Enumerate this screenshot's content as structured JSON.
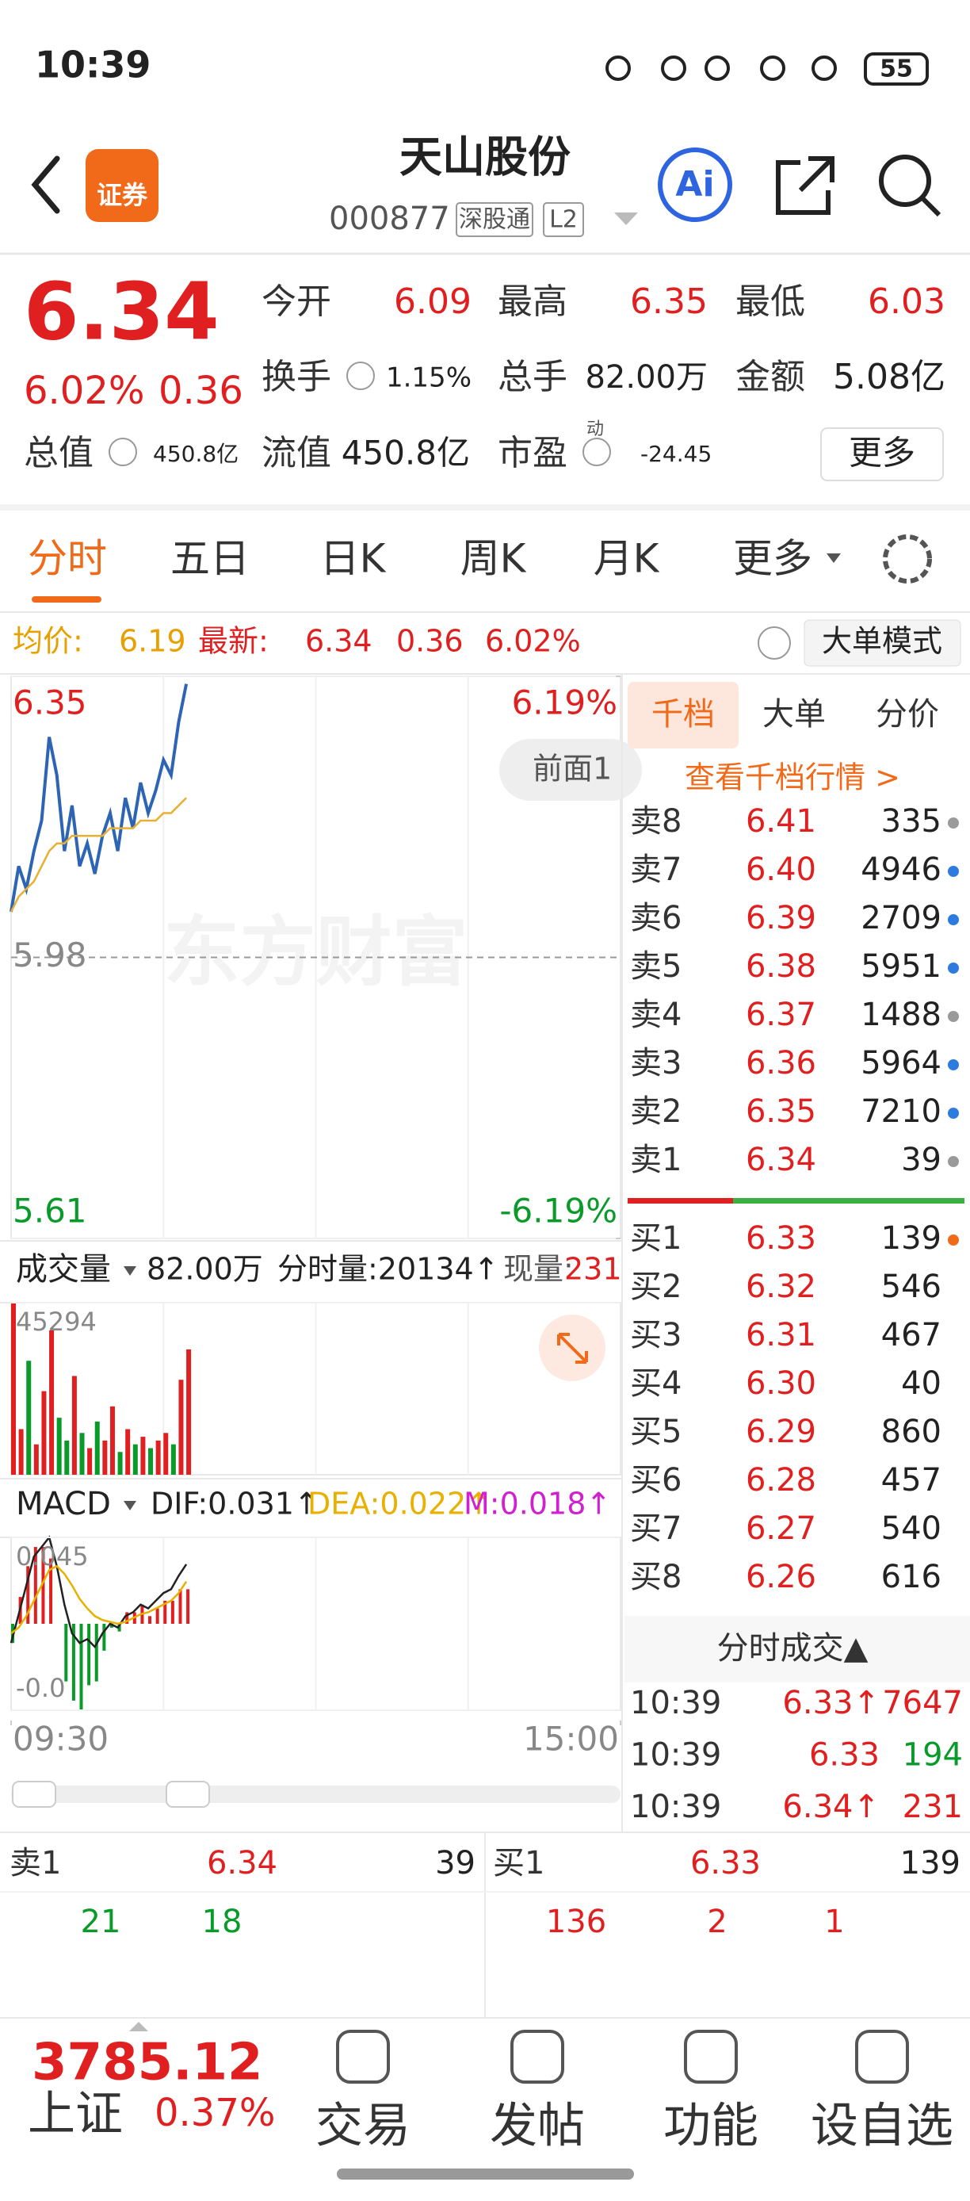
{
  "status_bar": {
    "time": "10:39",
    "battery": "55"
  },
  "header": {
    "badge": "证券",
    "title": "天山股份",
    "code": "000877",
    "tags": [
      "深股通",
      "L2"
    ],
    "ai": "Ai"
  },
  "quote": {
    "price": "6.34",
    "change_pct": "6.02%",
    "change": "0.36",
    "stats": [
      {
        "label": "今开",
        "value": "6.09"
      },
      {
        "label": "最高",
        "value": "6.35"
      },
      {
        "label": "最低",
        "value": "6.03"
      },
      {
        "label": "换手",
        "value": "1.15%"
      },
      {
        "label": "总手",
        "value": "82.00万"
      },
      {
        "label": "金额",
        "value": "5.08亿"
      },
      {
        "label": "总值",
        "value": "450.8亿"
      },
      {
        "label": "流值",
        "value": "450.8亿"
      },
      {
        "label": "市盈",
        "value": "-24.45",
        "superscript": "动"
      }
    ],
    "more": "更多"
  },
  "tabs": [
    "分时",
    "五日",
    "日K",
    "周K",
    "月K",
    "更多"
  ],
  "summary": {
    "avg_label": "均价:",
    "avg": "6.19",
    "last_label": "最新:",
    "last": "6.34",
    "change": "0.36",
    "change_pct": "6.02%",
    "mode": "大单模式"
  },
  "chart_data": [
    {
      "type": "line",
      "watermark": "东方财富",
      "annotation": "前面1",
      "xlim": [
        0,
        240
      ],
      "xticks": [
        {
          "value": 0,
          "label": "09:30"
        },
        {
          "value": 240,
          "label": "15:00"
        }
      ],
      "ylim": [
        5.61,
        6.35
      ],
      "yticks": [
        5.61,
        5.98,
        6.35
      ],
      "y2lim": [
        -6.19,
        6.19
      ],
      "y2ticks": [
        {
          "value": -6.19,
          "label": "-6.19%"
        },
        {
          "value": 6.19,
          "label": "6.19%"
        }
      ],
      "x": [
        0,
        3,
        6,
        9,
        12,
        15,
        18,
        21,
        24,
        27,
        30,
        33,
        36,
        39,
        42,
        45,
        48,
        51,
        54,
        57,
        60,
        63,
        66,
        69
      ],
      "series": [
        {
          "color": "#2e64b4",
          "values": [
            6.04,
            6.1,
            6.07,
            6.12,
            6.16,
            6.27,
            6.22,
            6.12,
            6.18,
            6.1,
            6.13,
            6.09,
            6.14,
            6.17,
            6.12,
            6.19,
            6.15,
            6.21,
            6.17,
            6.2,
            6.24,
            6.22,
            6.29,
            6.34
          ]
        },
        {
          "color": "#e8b030",
          "values": [
            6.04,
            6.06,
            6.07,
            6.08,
            6.1,
            6.12,
            6.13,
            6.13,
            6.14,
            6.14,
            6.14,
            6.14,
            6.14,
            6.15,
            6.15,
            6.15,
            6.15,
            6.16,
            6.16,
            6.16,
            6.17,
            6.17,
            6.18,
            6.19
          ]
        }
      ]
    },
    {
      "type": "bar",
      "title": "成交量",
      "stats": [
        "82.00万",
        "分时量:20134↑",
        "现量:",
        "231"
      ],
      "xlim": [
        0,
        240
      ],
      "ylim": [
        0,
        45294
      ],
      "yticks": [
        45294
      ],
      "x": [
        0,
        3,
        6,
        9,
        12,
        15,
        18,
        21,
        24,
        27,
        30,
        33,
        36,
        39,
        42,
        45,
        48,
        51,
        54,
        57,
        60,
        63,
        66,
        69
      ],
      "values": [
        45294,
        12000,
        30000,
        8000,
        22000,
        38000,
        15000,
        9000,
        26000,
        11000,
        7000,
        14000,
        9000,
        18000,
        6000,
        12000,
        8000,
        10000,
        7000,
        9000,
        11000,
        8000,
        25000,
        33000
      ],
      "colors": [
        "#e02020",
        "#e02020",
        "#0a9a2a",
        "#e02020",
        "#e02020",
        "#e02020",
        "#0a9a2a",
        "#0a9a2a",
        "#e02020",
        "#0a9a2a",
        "#e02020",
        "#0a9a2a",
        "#e02020",
        "#e02020",
        "#0a9a2a",
        "#e02020",
        "#0a9a2a",
        "#e02020",
        "#0a9a2a",
        "#e02020",
        "#e02020",
        "#0a9a2a",
        "#e02020",
        "#e02020"
      ]
    },
    {
      "type": "macd",
      "title": "MACD",
      "stats": [
        "DIF:0.031↑",
        "DEA:0.022↑",
        "M:0.018↑"
      ],
      "stat_colors": [
        "#222222",
        "#e8b000",
        "#d020d0"
      ],
      "xlim": [
        0,
        240
      ],
      "ylim": [
        -0.045,
        0.045
      ],
      "yticks": [
        {
          "value": -0.045,
          "label": "-0.0"
        },
        0.045
      ],
      "x": [
        0,
        3,
        6,
        9,
        12,
        15,
        18,
        21,
        24,
        27,
        30,
        33,
        36,
        39,
        42,
        45,
        48,
        51,
        54,
        57,
        60,
        63,
        66,
        69
      ],
      "histogram": [
        -0.01,
        0.014,
        0.03,
        0.04,
        0.04,
        0.034,
        0.0,
        -0.03,
        -0.04,
        -0.045,
        -0.032,
        -0.03,
        -0.014,
        -0.002,
        -0.004,
        0.006,
        0.006,
        0.01,
        0.004,
        0.008,
        0.012,
        0.012,
        0.018,
        0.018
      ],
      "series": [
        {
          "name": "DIF",
          "color": "#222222",
          "values": [
            -0.01,
            0.005,
            0.02,
            0.035,
            0.04,
            0.045,
            0.03,
            0.01,
            -0.005,
            -0.01,
            -0.008,
            -0.012,
            -0.005,
            0.0,
            -0.002,
            0.004,
            0.006,
            0.01,
            0.008,
            0.012,
            0.016,
            0.018,
            0.025,
            0.031
          ]
        },
        {
          "name": "DEA",
          "color": "#e8b000",
          "values": [
            -0.005,
            -0.002,
            0.004,
            0.012,
            0.02,
            0.028,
            0.03,
            0.026,
            0.02,
            0.013,
            0.008,
            0.004,
            0.002,
            0.001,
            0.0,
            0.001,
            0.003,
            0.005,
            0.006,
            0.008,
            0.01,
            0.012,
            0.016,
            0.022
          ]
        }
      ]
    }
  ],
  "order_book": {
    "tabs": [
      "千档",
      "大单",
      "分价"
    ],
    "link": "查看千档行情 >",
    "asks": [
      {
        "label": "卖8",
        "price": "6.41",
        "volume": "335",
        "dot": "#9a9a9a"
      },
      {
        "label": "卖7",
        "price": "6.40",
        "volume": "4946",
        "dot": "#2e7be0"
      },
      {
        "label": "卖6",
        "price": "6.39",
        "volume": "2709",
        "dot": "#2e7be0"
      },
      {
        "label": "卖5",
        "price": "6.38",
        "volume": "5951",
        "dot": "#2e7be0"
      },
      {
        "label": "卖4",
        "price": "6.37",
        "volume": "1488",
        "dot": "#9a9a9a"
      },
      {
        "label": "卖3",
        "price": "6.36",
        "volume": "5964",
        "dot": "#2e7be0"
      },
      {
        "label": "卖2",
        "price": "6.35",
        "volume": "7210",
        "dot": "#2e7be0"
      },
      {
        "label": "卖1",
        "price": "6.34",
        "volume": "39",
        "dot": "#9a9a9a"
      }
    ],
    "bids": [
      {
        "label": "买1",
        "price": "6.33",
        "volume": "139",
        "dot": "#f06a1a"
      },
      {
        "label": "买2",
        "price": "6.32",
        "volume": "546"
      },
      {
        "label": "买3",
        "price": "6.31",
        "volume": "467"
      },
      {
        "label": "买4",
        "price": "6.30",
        "volume": "40"
      },
      {
        "label": "买5",
        "price": "6.29",
        "volume": "860"
      },
      {
        "label": "买6",
        "price": "6.28",
        "volume": "457"
      },
      {
        "label": "买7",
        "price": "6.27",
        "volume": "540"
      },
      {
        "label": "买8",
        "price": "6.26",
        "volume": "616"
      }
    ]
  },
  "trades": {
    "title": "分时成交▲",
    "rows": [
      {
        "time": "10:39",
        "price": "6.33↑",
        "volume": "7647",
        "color": "#e02020"
      },
      {
        "time": "10:39",
        "price": "6.33",
        "volume": "194",
        "color": "#0a9a2a"
      },
      {
        "time": "10:39",
        "price": "6.34↑",
        "volume": "231",
        "color": "#e02020"
      }
    ]
  },
  "level1": {
    "ask_label": "卖1",
    "ask_price": "6.34",
    "ask_volume": "39",
    "bid_label": "买1",
    "bid_price": "6.33",
    "bid_volume": "139",
    "ask_orders": [
      "21",
      "18"
    ],
    "bid_orders": [
      "136",
      "2",
      "1"
    ]
  },
  "nav": {
    "index_value": "3785.12",
    "index_name": "上证",
    "index_change": "0.37%",
    "items": [
      "交易",
      "发帖",
      "功能",
      "设自选"
    ]
  }
}
